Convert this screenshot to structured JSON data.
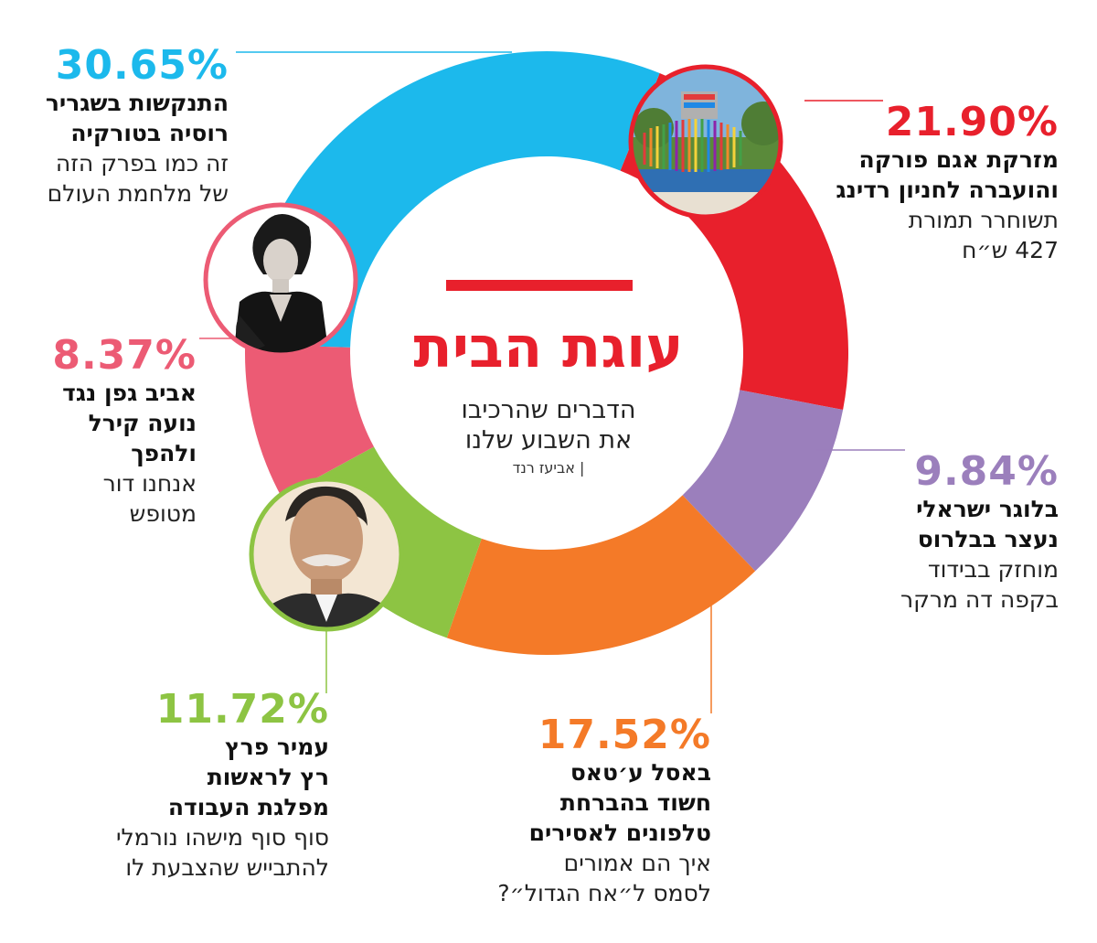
{
  "header": {
    "title": "עוגת הבית",
    "subtitle_line1": "הדברים שהרכיבו",
    "subtitle_line2": "את השבוע שלנו",
    "author": "| אביעז רנד"
  },
  "chart_data": {
    "type": "pie",
    "title": "עוגת הבית",
    "subtitle": "הדברים שהרכיבו את השבוע שלנו",
    "unit": "%",
    "slices": [
      {
        "label": "מזרקת אגם פורקה והועברה לחניון רדינג",
        "value": 21.9,
        "color": "#e8202c"
      },
      {
        "label": "בלוגר ישראלי נעצר בבלרוס",
        "value": 9.84,
        "color": "#9b7fbc"
      },
      {
        "label": "באסל ע׳טאס חשוד בהברחת טלפונים לאסירים",
        "value": 17.52,
        "color": "#f47a28"
      },
      {
        "label": "עמיר פרץ רץ לראשות מפלגת העבודה",
        "value": 11.72,
        "color": "#8dc443"
      },
      {
        "label": "אביב גפן נגד נועה קירל ולהפך",
        "value": 8.37,
        "color": "#ec5b74"
      },
      {
        "label": "התנקשות בשגריר רוסיה בטורקיה",
        "value": 30.65,
        "color": "#1cb9ec"
      }
    ]
  },
  "labels": {
    "fountain": {
      "pct": "21.90%",
      "color": "#e8202c",
      "bold1": "מזרקת אגם פורקה",
      "bold2": "והועברה לחניון רדינג",
      "reg1": "תשוחרר תמורת",
      "reg2": "427 ש״ח"
    },
    "blogger": {
      "pct": "9.84%",
      "color": "#9b7fbc",
      "bold1": "בלוגר ישראלי",
      "bold2": "נעצר בבלרוס",
      "reg1": "מוחזק בבידוד",
      "reg2": "בקפה דה מרקר"
    },
    "basel": {
      "pct": "17.52%",
      "color": "#f47a28",
      "bold1": "באסל ע׳טאס",
      "bold2": "חשוד בהברחת",
      "bold3": "טלפונים לאסירים",
      "reg1": "איך הם אמורים",
      "reg2": "לסמס ל״אח הגדול״?"
    },
    "peretz": {
      "pct": "11.72%",
      "color": "#8dc443",
      "bold1": "עמיר פרץ",
      "bold2": "רץ לראשות",
      "bold3": "מפלגת העבודה",
      "reg1": "סוף סוף מישהו נורמלי",
      "reg2": "להתבייש שהצבעת לו"
    },
    "geffen": {
      "pct": "8.37%",
      "color": "#ec5b74",
      "bold1": "אביב גפן נגד",
      "bold2": "נועה קירל",
      "bold3": "ולהפך",
      "reg1": "אנחנו דור",
      "reg2": "מטופש"
    },
    "russia": {
      "pct": "30.65%",
      "color": "#1cb9ec",
      "bold1": "התנקשות בשגריר",
      "bold2": "רוסיה בטורקיה",
      "reg1": "זה כמו בפרק הזה",
      "reg2": "של מלחמת העולם"
    }
  },
  "photos": {
    "fountain": {
      "icon": "fountain-photo-icon",
      "ring_color": "#e8202c"
    },
    "singer": {
      "icon": "singer-portrait-icon",
      "ring_color": "#ec5b74"
    },
    "politician": {
      "icon": "politician-portrait-icon",
      "ring_color": "#8dc443"
    }
  }
}
